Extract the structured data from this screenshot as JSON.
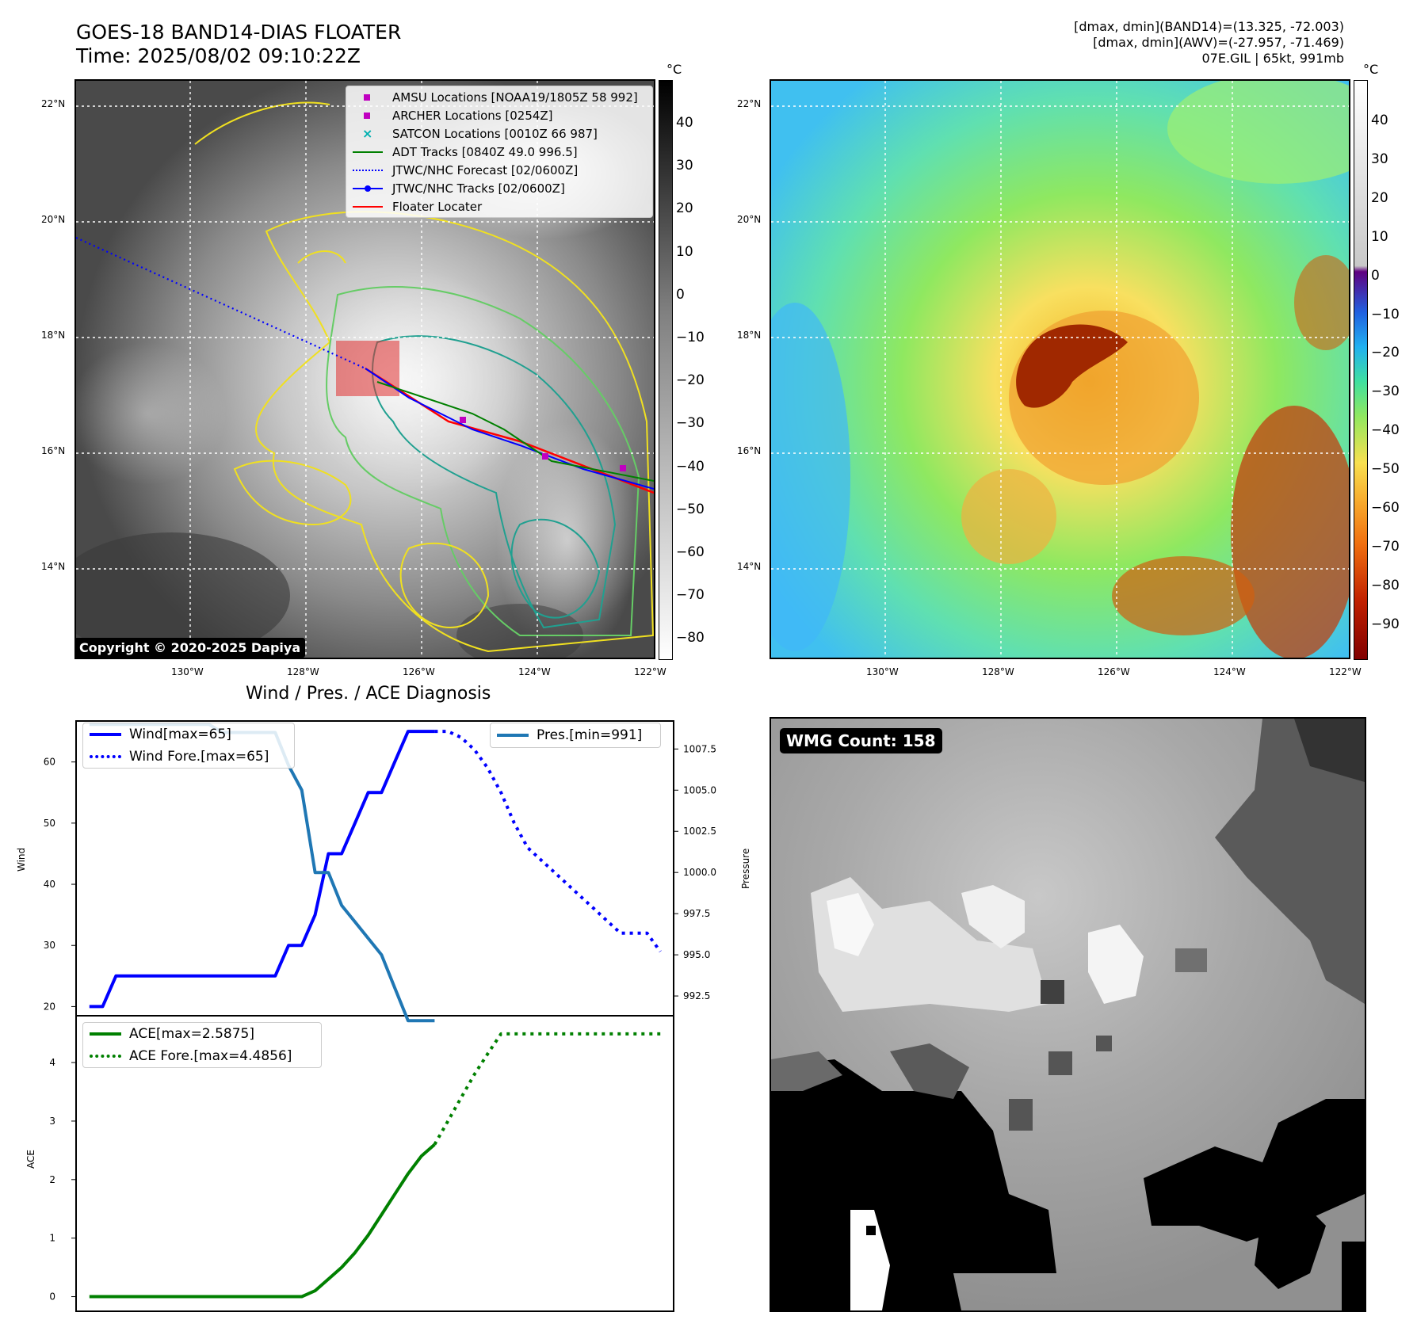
{
  "header": {
    "title_line1": "GOES-18 BAND14-DIAS FLOATER",
    "title_line2": "Time: 2025/08/02 09:10:22Z",
    "info_line1": "[dmax, dmin](BAND14)=(13.325, -72.003)",
    "info_line2": "[dmax, dmin](AWV)=(-27.957, -71.469)",
    "info_line3": "07E.GIL | 65kt, 991mb"
  },
  "map": {
    "lat_labels": [
      "22°N",
      "20°N",
      "18°N",
      "16°N",
      "14°N"
    ],
    "lon_labels": [
      "130°W",
      "128°W",
      "126°W",
      "124°W",
      "122°W"
    ],
    "copyright": "Copyright © 2020-2025 Dapiya"
  },
  "colorbar_gray": {
    "unit": "°C",
    "ticks": [
      "40",
      "30",
      "20",
      "10",
      "0",
      "−10",
      "−20",
      "−30",
      "−40",
      "−50",
      "−60",
      "−70",
      "−80"
    ]
  },
  "colorbar_color": {
    "unit": "°C",
    "ticks": [
      "40",
      "30",
      "20",
      "10",
      "0",
      "−10",
      "−20",
      "−30",
      "−40",
      "−50",
      "−60",
      "−70",
      "−80",
      "−90"
    ]
  },
  "legend": [
    {
      "label": "AMSU Locations [NOAA19/1805Z 58 992]",
      "color": "#c000c0",
      "kind": "square"
    },
    {
      "label": "ARCHER Locations [0254Z]",
      "color": "#c000c0",
      "kind": "square"
    },
    {
      "label": "SATCON Locations [0010Z 66 987]",
      "color": "#00b0b0",
      "kind": "x"
    },
    {
      "label": "ADT Tracks [0840Z 49.0 996.5]",
      "color": "#008000",
      "kind": "line"
    },
    {
      "label": "JTWC/NHC Forecast [02/0600Z]",
      "color": "#0000ff",
      "kind": "dotted"
    },
    {
      "label": "JTWC/NHC Tracks [02/0600Z]",
      "color": "#0000ff",
      "kind": "line-dot"
    },
    {
      "label": "Floater Locater",
      "color": "#ff0000",
      "kind": "line"
    }
  ],
  "diag_title": "Wind / Pres. / ACE Diagnosis",
  "wmg_count": "WMG Count: 158",
  "chart_data": [
    {
      "type": "line",
      "title": "Wind / Pres. / ACE Diagnosis",
      "ylabel": "Wind",
      "y2label": "Pressure",
      "ylim": [
        18.5,
        66.7
      ],
      "y2lim": [
        991.3,
        1009.2
      ],
      "yticks": [
        "60",
        "50",
        "40",
        "30",
        "20"
      ],
      "y2ticks": [
        "1007.5",
        "1005.0",
        "1002.5",
        "1000.0",
        "997.5",
        "995.0",
        "992.5"
      ],
      "legend_left": [
        "Wind[max=65]",
        "Wind Fore.[max=65]"
      ],
      "legend_right": [
        "Pres.[min=991]"
      ],
      "series": [
        {
          "name": "Wind[max=65]",
          "color": "#0000ff",
          "style": "solid",
          "axis": "left",
          "x": [
            0,
            1,
            2,
            3,
            4,
            5,
            6,
            7,
            8,
            9,
            10,
            11,
            12,
            13,
            14,
            15,
            16,
            17,
            18,
            19,
            20,
            21,
            22,
            23,
            24,
            25,
            26
          ],
          "values": [
            20,
            20,
            25,
            25,
            25,
            25,
            25,
            25,
            25,
            25,
            25,
            25,
            25,
            25,
            25,
            30,
            30,
            35,
            45,
            45,
            50,
            55,
            55,
            60,
            65,
            65,
            65
          ]
        },
        {
          "name": "Wind Fore.[max=65]",
          "color": "#0000ff",
          "style": "dotted",
          "axis": "left",
          "x": [
            26,
            27,
            28,
            29,
            30,
            31,
            32,
            33,
            34,
            35,
            36,
            37,
            38,
            39,
            40,
            41,
            42,
            43
          ],
          "values": [
            65,
            65,
            64,
            62,
            59,
            55,
            50,
            46,
            44,
            42,
            40,
            38,
            36,
            34,
            32,
            32,
            32,
            29
          ]
        },
        {
          "name": "Pres.[min=991]",
          "color": "#1f77b4",
          "style": "solid",
          "axis": "right",
          "x": [
            0,
            1,
            2,
            3,
            4,
            5,
            6,
            7,
            8,
            9,
            10,
            11,
            12,
            13,
            14,
            15,
            16,
            17,
            18,
            19,
            20,
            21,
            22,
            23,
            24,
            25,
            26
          ],
          "values": [
            1009,
            1009,
            1009,
            1009,
            1009,
            1009,
            1009,
            1009,
            1009,
            1009,
            1008.5,
            1008.5,
            1008.5,
            1008.5,
            1008.5,
            1006.5,
            1005,
            1000,
            1000,
            998,
            997,
            996,
            995,
            993,
            991,
            991,
            991
          ]
        }
      ]
    },
    {
      "type": "line",
      "ylabel": "ACE",
      "ylim": [
        -0.25,
        4.8
      ],
      "yticks": [
        "4",
        "3",
        "2",
        "1",
        "0"
      ],
      "legend_left": [
        "ACE[max=2.5875]",
        "ACE Fore.[max=4.4856]"
      ],
      "series": [
        {
          "name": "ACE[max=2.5875]",
          "color": "#008000",
          "style": "solid",
          "x": [
            0,
            1,
            2,
            3,
            4,
            5,
            6,
            7,
            8,
            9,
            10,
            11,
            12,
            13,
            14,
            15,
            16,
            17,
            18,
            19,
            20,
            21,
            22,
            23,
            24,
            25,
            26
          ],
          "values": [
            0,
            0,
            0,
            0,
            0,
            0,
            0,
            0,
            0,
            0,
            0,
            0,
            0,
            0,
            0,
            0,
            0,
            0.1,
            0.3,
            0.5,
            0.75,
            1.05,
            1.4,
            1.75,
            2.1,
            2.4,
            2.6
          ]
        },
        {
          "name": "ACE Fore.[max=4.4856]",
          "color": "#008000",
          "style": "dotted",
          "x": [
            26,
            27,
            28,
            29,
            30,
            31,
            32,
            33,
            34,
            35,
            36,
            37,
            38,
            39,
            40,
            41,
            42,
            43
          ],
          "values": [
            2.6,
            3.0,
            3.4,
            3.8,
            4.15,
            4.49,
            4.49,
            4.49,
            4.49,
            4.49,
            4.49,
            4.49,
            4.49,
            4.49,
            4.49,
            4.49,
            4.49,
            4.49
          ]
        }
      ]
    }
  ]
}
